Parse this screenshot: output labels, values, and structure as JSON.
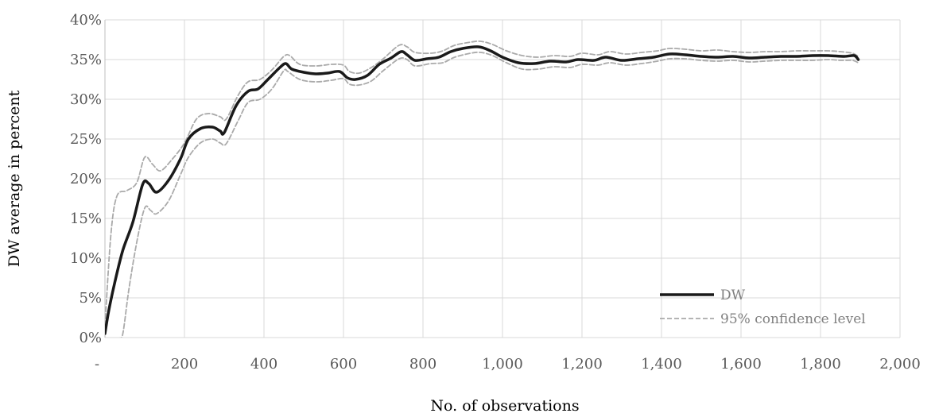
{
  "chart_data": {
    "type": "line",
    "xlabel": "No. of observations",
    "ylabel": "DW average in percent",
    "xlim": [
      0,
      2000
    ],
    "ylim": [
      0,
      40
    ],
    "x_ticks": [
      {
        "value": 0,
        "label": "-"
      },
      {
        "value": 200,
        "label": "200"
      },
      {
        "value": 400,
        "label": "400"
      },
      {
        "value": 600,
        "label": "600"
      },
      {
        "value": 800,
        "label": "800"
      },
      {
        "value": 1000,
        "label": "1,000"
      },
      {
        "value": 1200,
        "label": "1,200"
      },
      {
        "value": 1400,
        "label": "1,400"
      },
      {
        "value": 1600,
        "label": "1,600"
      },
      {
        "value": 1800,
        "label": "1,800"
      },
      {
        "value": 2000,
        "label": "2,000"
      }
    ],
    "y_ticks": [
      {
        "value": 0,
        "label": "0%"
      },
      {
        "value": 5,
        "label": "5%"
      },
      {
        "value": 10,
        "label": "10%"
      },
      {
        "value": 15,
        "label": "15%"
      },
      {
        "value": 20,
        "label": "20%"
      },
      {
        "value": 25,
        "label": "25%"
      },
      {
        "value": 30,
        "label": "30%"
      },
      {
        "value": 35,
        "label": "35%"
      },
      {
        "value": 40,
        "label": "40%"
      }
    ],
    "grid": true,
    "legend_position": "bottom-right",
    "series": [
      {
        "name": "DW",
        "color": "#1a1a1a",
        "style": "solid",
        "points": [
          [
            0,
            0.5
          ],
          [
            10,
            3.5
          ],
          [
            25,
            7
          ],
          [
            45,
            11
          ],
          [
            70,
            14.5
          ],
          [
            95,
            19.3
          ],
          [
            110,
            19.4
          ],
          [
            130,
            18.3
          ],
          [
            160,
            19.8
          ],
          [
            190,
            22.5
          ],
          [
            210,
            25
          ],
          [
            240,
            26.3
          ],
          [
            270,
            26.5
          ],
          [
            290,
            26
          ],
          [
            300,
            25.8
          ],
          [
            330,
            29.2
          ],
          [
            360,
            31
          ],
          [
            385,
            31.3
          ],
          [
            410,
            32.5
          ],
          [
            440,
            34
          ],
          [
            455,
            34.5
          ],
          [
            470,
            33.8
          ],
          [
            500,
            33.4
          ],
          [
            530,
            33.2
          ],
          [
            560,
            33.3
          ],
          [
            590,
            33.5
          ],
          [
            610,
            32.7
          ],
          [
            630,
            32.5
          ],
          [
            660,
            33
          ],
          [
            690,
            34.4
          ],
          [
            720,
            35.2
          ],
          [
            745,
            36
          ],
          [
            760,
            35.6
          ],
          [
            780,
            34.9
          ],
          [
            810,
            35.1
          ],
          [
            840,
            35.3
          ],
          [
            870,
            36
          ],
          [
            900,
            36.4
          ],
          [
            940,
            36.6
          ],
          [
            970,
            36.1
          ],
          [
            1000,
            35.3
          ],
          [
            1040,
            34.6
          ],
          [
            1080,
            34.5
          ],
          [
            1120,
            34.8
          ],
          [
            1160,
            34.7
          ],
          [
            1190,
            35
          ],
          [
            1230,
            34.9
          ],
          [
            1260,
            35.3
          ],
          [
            1300,
            34.9
          ],
          [
            1340,
            35.1
          ],
          [
            1380,
            35.3
          ],
          [
            1420,
            35.7
          ],
          [
            1460,
            35.6
          ],
          [
            1500,
            35.4
          ],
          [
            1540,
            35.3
          ],
          [
            1580,
            35.4
          ],
          [
            1620,
            35.2
          ],
          [
            1660,
            35.3
          ],
          [
            1700,
            35.4
          ],
          [
            1740,
            35.4
          ],
          [
            1780,
            35.5
          ],
          [
            1820,
            35.5
          ],
          [
            1860,
            35.4
          ],
          [
            1885,
            35.5
          ],
          [
            1895,
            35
          ]
        ]
      },
      {
        "name": "95% confidence level",
        "color": "#aaaaaa",
        "style": "dashed",
        "points": [
          [
            0,
            1.5
          ],
          [
            15,
            13
          ],
          [
            30,
            17.8
          ],
          [
            55,
            18.5
          ],
          [
            80,
            19.5
          ],
          [
            100,
            22.7
          ],
          [
            120,
            21.8
          ],
          [
            140,
            21
          ],
          [
            170,
            22.5
          ],
          [
            200,
            24.5
          ],
          [
            230,
            27.5
          ],
          [
            260,
            28.2
          ],
          [
            290,
            27.8
          ],
          [
            305,
            27.5
          ],
          [
            335,
            30.5
          ],
          [
            360,
            32.2
          ],
          [
            390,
            32.5
          ],
          [
            420,
            33.7
          ],
          [
            450,
            35.4
          ],
          [
            465,
            35.5
          ],
          [
            490,
            34.4
          ],
          [
            530,
            34.2
          ],
          [
            570,
            34.4
          ],
          [
            600,
            34.3
          ],
          [
            615,
            33.5
          ],
          [
            640,
            33.3
          ],
          [
            670,
            34
          ],
          [
            700,
            35.1
          ],
          [
            740,
            36.8
          ],
          [
            760,
            36.6
          ],
          [
            780,
            35.9
          ],
          [
            820,
            35.8
          ],
          [
            850,
            36.1
          ],
          [
            880,
            36.8
          ],
          [
            920,
            37.2
          ],
          [
            945,
            37.3
          ],
          [
            975,
            36.9
          ],
          [
            1010,
            36.1
          ],
          [
            1050,
            35.5
          ],
          [
            1090,
            35.3
          ],
          [
            1130,
            35.5
          ],
          [
            1170,
            35.4
          ],
          [
            1200,
            35.8
          ],
          [
            1240,
            35.6
          ],
          [
            1270,
            36
          ],
          [
            1310,
            35.7
          ],
          [
            1350,
            35.9
          ],
          [
            1390,
            36.1
          ],
          [
            1420,
            36.4
          ],
          [
            1460,
            36.3
          ],
          [
            1500,
            36.1
          ],
          [
            1540,
            36.2
          ],
          [
            1580,
            36
          ],
          [
            1620,
            35.9
          ],
          [
            1660,
            36
          ],
          [
            1700,
            36
          ],
          [
            1740,
            36.1
          ],
          [
            1780,
            36.1
          ],
          [
            1820,
            36.1
          ],
          [
            1850,
            36
          ],
          [
            1880,
            35.8
          ],
          [
            1895,
            35.4
          ]
        ]
      },
      {
        "name": "95% confidence level",
        "color": "#aaaaaa",
        "style": "dashed",
        "show_in_legend": false,
        "points": [
          [
            20,
            -2
          ],
          [
            35,
            -0.2
          ],
          [
            45,
            0.5
          ],
          [
            60,
            6
          ],
          [
            80,
            12
          ],
          [
            100,
            16.3
          ],
          [
            115,
            16
          ],
          [
            130,
            15.6
          ],
          [
            160,
            17.2
          ],
          [
            190,
            20.5
          ],
          [
            210,
            22.7
          ],
          [
            240,
            24.5
          ],
          [
            270,
            25
          ],
          [
            290,
            24.5
          ],
          [
            305,
            24.4
          ],
          [
            335,
            27.3
          ],
          [
            360,
            29.6
          ],
          [
            390,
            30
          ],
          [
            420,
            31.3
          ],
          [
            450,
            33.6
          ],
          [
            460,
            33.5
          ],
          [
            490,
            32.5
          ],
          [
            530,
            32.2
          ],
          [
            570,
            32.4
          ],
          [
            600,
            32.6
          ],
          [
            615,
            31.9
          ],
          [
            640,
            31.8
          ],
          [
            670,
            32.3
          ],
          [
            700,
            33.6
          ],
          [
            740,
            35.1
          ],
          [
            760,
            35
          ],
          [
            780,
            34.2
          ],
          [
            820,
            34.5
          ],
          [
            850,
            34.6
          ],
          [
            880,
            35.3
          ],
          [
            920,
            35.8
          ],
          [
            945,
            35.9
          ],
          [
            975,
            35.5
          ],
          [
            1010,
            34.6
          ],
          [
            1050,
            33.8
          ],
          [
            1090,
            33.8
          ],
          [
            1130,
            34.1
          ],
          [
            1170,
            34
          ],
          [
            1200,
            34.4
          ],
          [
            1240,
            34.3
          ],
          [
            1270,
            34.6
          ],
          [
            1310,
            34.3
          ],
          [
            1350,
            34.5
          ],
          [
            1390,
            34.8
          ],
          [
            1420,
            35.1
          ],
          [
            1460,
            35.1
          ],
          [
            1500,
            34.9
          ],
          [
            1540,
            34.8
          ],
          [
            1580,
            34.9
          ],
          [
            1620,
            34.7
          ],
          [
            1660,
            34.8
          ],
          [
            1700,
            34.9
          ],
          [
            1740,
            34.9
          ],
          [
            1780,
            34.9
          ],
          [
            1820,
            35
          ],
          [
            1850,
            34.9
          ],
          [
            1880,
            34.9
          ],
          [
            1895,
            34.6
          ]
        ]
      }
    ]
  }
}
